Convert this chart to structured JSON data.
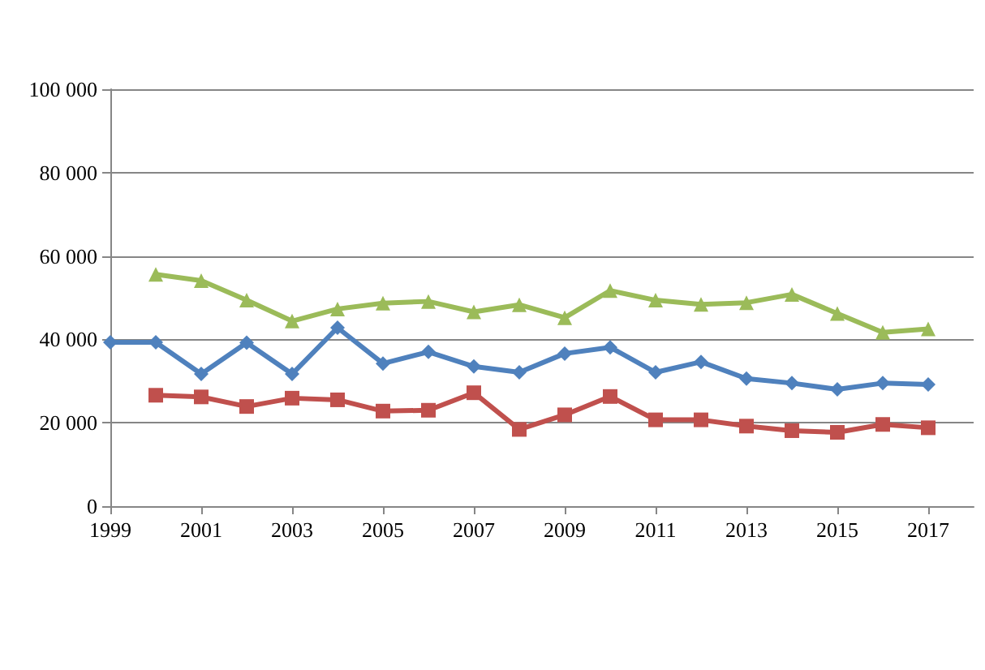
{
  "chart_data": {
    "type": "line",
    "ylim": [
      0,
      100000
    ],
    "yticks": [
      0,
      {
        "value": 20000,
        "label": "20 000"
      },
      {
        "value": 40000,
        "label": "40 000"
      },
      {
        "value": 60000,
        "label": "60 000"
      },
      {
        "value": 80000,
        "label": "80 000"
      },
      {
        "value": 100000,
        "label": "100 000"
      }
    ],
    "xlim": [
      1999,
      2018
    ],
    "xticks": [
      1999,
      2001,
      2003,
      2005,
      2007,
      2009,
      2011,
      2013,
      2015,
      2017
    ],
    "grid": "y",
    "series": [
      {
        "color": "#9bbb59",
        "marker": "triangle",
        "x": [
          2000,
          2001,
          2002,
          2003,
          2004,
          2005,
          2006,
          2007,
          2008,
          2009,
          2010,
          2011,
          2012,
          2013,
          2014,
          2015,
          2016,
          2017
        ],
        "values": [
          55600,
          54100,
          49400,
          44400,
          47300,
          48700,
          49100,
          46600,
          48300,
          45200,
          51700,
          49400,
          48400,
          48800,
          50800,
          46200,
          41700,
          42500
        ]
      },
      {
        "color": "#c0504d",
        "marker": "square",
        "x": [
          2000,
          2001,
          2002,
          2003,
          2004,
          2005,
          2006,
          2007,
          2008,
          2009,
          2010,
          2011,
          2012,
          2013,
          2014,
          2015,
          2016,
          2017
        ],
        "values": [
          26600,
          26200,
          23900,
          25900,
          25500,
          22800,
          23000,
          27200,
          18400,
          21900,
          26300,
          20700,
          20700,
          19200,
          18100,
          17700,
          19600,
          18800
        ]
      },
      {
        "color": "#4f81bd",
        "marker": "diamond",
        "x": [
          1999,
          2000,
          2001,
          2002,
          2003,
          2004,
          2005,
          2006,
          2007,
          2008,
          2009,
          2010,
          2011,
          2012,
          2013,
          2014,
          2015,
          2016,
          2017
        ],
        "values": [
          39300,
          39300,
          31700,
          39200,
          31700,
          42800,
          34200,
          37000,
          33500,
          32100,
          36600,
          38100,
          32100,
          34600,
          30600,
          29500,
          28000,
          29500,
          29200
        ]
      }
    ]
  }
}
